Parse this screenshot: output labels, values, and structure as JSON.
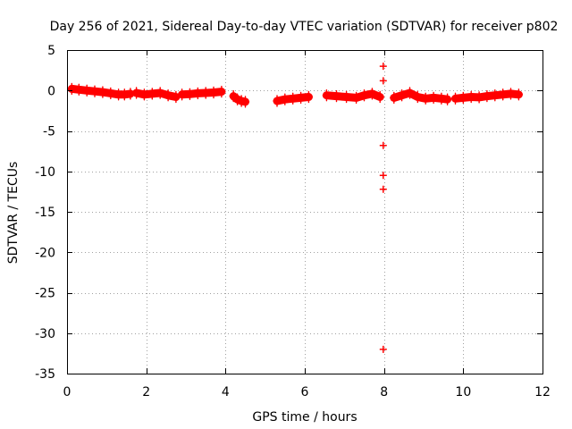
{
  "chart_data": {
    "type": "scatter",
    "title": "Day 256 of 2021, Sidereal Day-to-day VTEC variation (SDTVAR) for receiver p802",
    "xlabel": "GPS time / hours",
    "ylabel": "SDTVAR / TECUs",
    "xlim": [
      0,
      12
    ],
    "ylim": [
      -35,
      5
    ],
    "x_ticks": [
      0,
      2,
      4,
      6,
      8,
      10,
      12
    ],
    "y_ticks": [
      5,
      0,
      -5,
      -10,
      -15,
      -20,
      -25,
      -30,
      -35
    ],
    "grid": true,
    "marker": "+",
    "series_color": "#ff0000",
    "segments": [
      {
        "x": [
          0.12,
          0.3,
          0.5,
          0.7,
          0.9,
          1.1,
          1.3,
          1.45,
          1.6
        ],
        "y": [
          0.2,
          0.1,
          0.0,
          -0.1,
          -0.2,
          -0.35,
          -0.5,
          -0.5,
          -0.4
        ]
      },
      {
        "x": [
          1.75,
          1.95,
          2.15,
          2.35,
          2.55,
          2.75
        ],
        "y": [
          -0.3,
          -0.5,
          -0.4,
          -0.3,
          -0.6,
          -0.8
        ]
      },
      {
        "x": [
          2.9,
          3.1,
          3.3,
          3.5,
          3.7,
          3.9
        ],
        "y": [
          -0.5,
          -0.45,
          -0.35,
          -0.3,
          -0.25,
          -0.15
        ]
      },
      {
        "x": [
          4.2,
          4.3,
          4.4,
          4.5
        ],
        "y": [
          -0.7,
          -1.1,
          -1.3,
          -1.4
        ]
      },
      {
        "x": [
          5.3,
          5.5,
          5.7,
          5.9,
          6.1
        ],
        "y": [
          -1.3,
          -1.1,
          -1.0,
          -0.9,
          -0.8
        ]
      },
      {
        "x": [
          6.55,
          6.8,
          7.05,
          7.3,
          7.5,
          7.7,
          7.9
        ],
        "y": [
          -0.6,
          -0.7,
          -0.8,
          -0.9,
          -0.6,
          -0.4,
          -0.8
        ]
      },
      {
        "x": [
          8.25,
          8.45,
          8.65,
          8.85,
          9.05,
          9.25,
          9.45,
          9.6
        ],
        "y": [
          -0.9,
          -0.6,
          -0.3,
          -0.8,
          -1.0,
          -0.9,
          -1.0,
          -1.1
        ]
      },
      {
        "x": [
          9.8,
          10.0,
          10.2,
          10.4,
          10.6,
          10.8,
          11.0,
          11.2,
          11.4
        ],
        "y": [
          -1.0,
          -0.9,
          -0.8,
          -0.85,
          -0.7,
          -0.6,
          -0.5,
          -0.4,
          -0.5
        ]
      }
    ],
    "isolated_points": [
      {
        "x": 7.98,
        "y": 3.0
      },
      {
        "x": 7.98,
        "y": 1.2
      },
      {
        "x": 7.98,
        "y": -6.8
      },
      {
        "x": 7.98,
        "y": -10.5
      },
      {
        "x": 7.98,
        "y": -12.2
      },
      {
        "x": 7.98,
        "y": -32.0
      }
    ]
  }
}
